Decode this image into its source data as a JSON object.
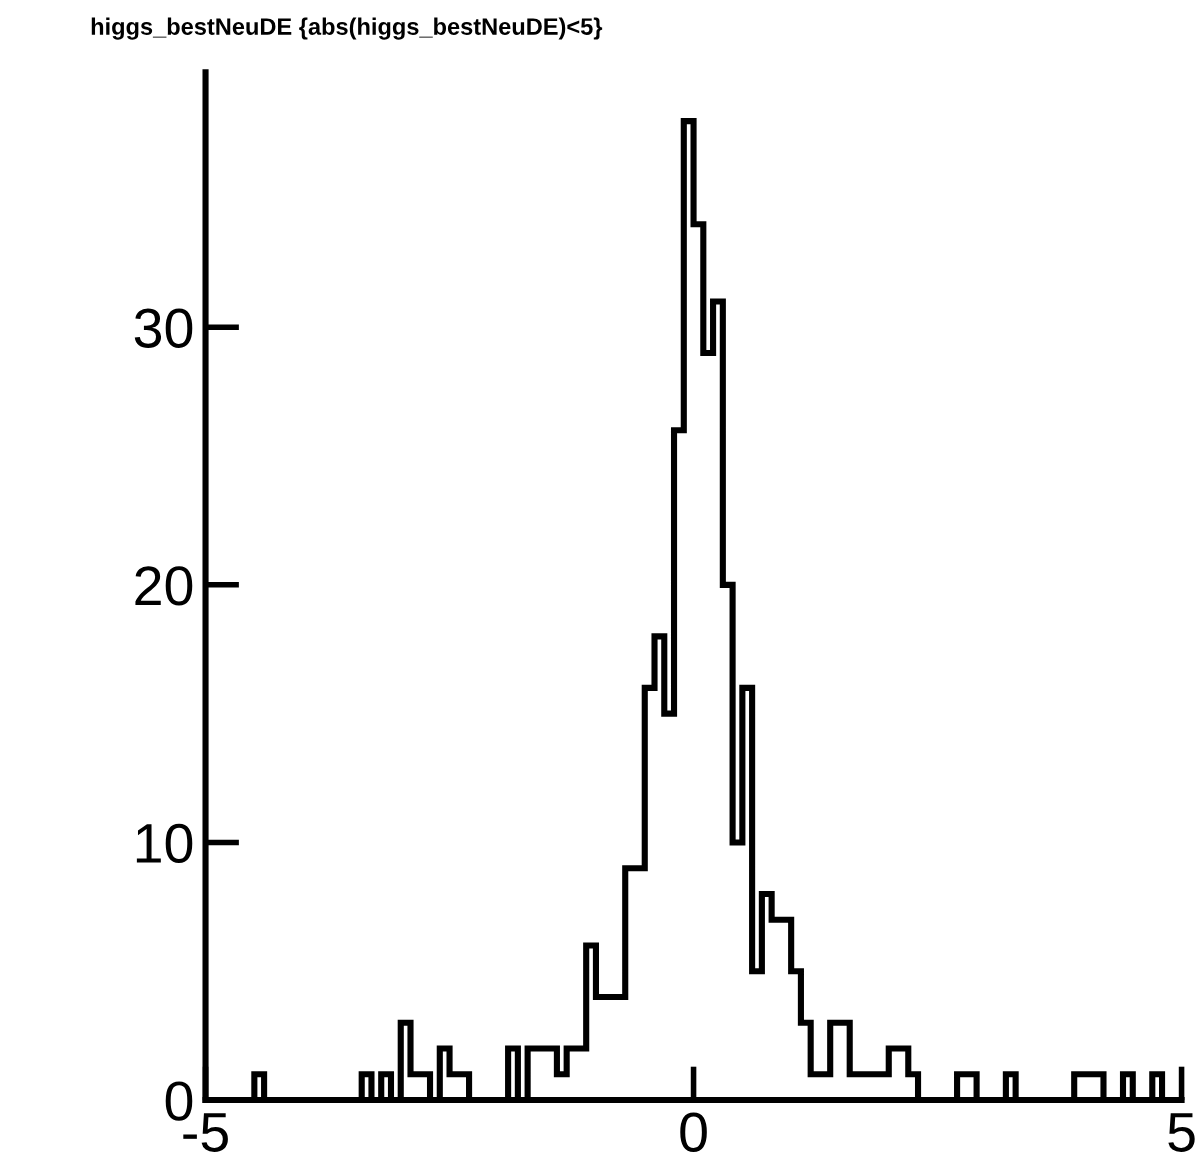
{
  "chart_data": {
    "type": "histogram",
    "title": "higgs_bestNeuDE {abs(higgs_bestNeuDE)<5}",
    "bins": [
      -5,
      -4.9,
      -4.8,
      -4.7,
      -4.6,
      -4.5,
      -4.4,
      -4.3,
      -4.2,
      -4.1,
      -4,
      -3.9,
      -3.8,
      -3.7,
      -3.6,
      -3.5,
      -3.4,
      -3.3,
      -3.2,
      -3.1,
      -3,
      -2.9,
      -2.8,
      -2.7,
      -2.6,
      -2.5,
      -2.4,
      -2.3,
      -2.2,
      -2.1,
      -2,
      -1.9,
      -1.8,
      -1.7,
      -1.6,
      -1.5,
      -1.4,
      -1.3,
      -1.2,
      -1.1,
      -1,
      -0.9,
      -0.8,
      -0.7,
      -0.6,
      -0.5,
      -0.4,
      -0.3,
      -0.2,
      -0.1,
      0,
      0.1,
      0.2,
      0.3,
      0.4,
      0.5,
      0.6,
      0.7,
      0.8,
      0.9,
      1,
      1.1,
      1.2,
      1.3,
      1.4,
      1.5,
      1.6,
      1.7,
      1.8,
      1.9,
      2,
      2.1,
      2.2,
      2.3,
      2.4,
      2.5,
      2.6,
      2.7,
      2.8,
      2.9,
      3,
      3.1,
      3.2,
      3.3,
      3.4,
      3.5,
      3.6,
      3.7,
      3.8,
      3.9,
      4,
      4.1,
      4.2,
      4.3,
      4.4,
      4.5,
      4.6,
      4.7,
      4.8,
      4.9,
      5
    ],
    "values": [
      0,
      0,
      0,
      0,
      0,
      1,
      0,
      0,
      0,
      0,
      0,
      0,
      0,
      0,
      0,
      0,
      1,
      0,
      1,
      0,
      3,
      1,
      1,
      0,
      2,
      1,
      1,
      0,
      0,
      0,
      0,
      2,
      0,
      2,
      2,
      2,
      1,
      2,
      2,
      6,
      4,
      4,
      4,
      9,
      9,
      16,
      18,
      15,
      26,
      38,
      34,
      29,
      31,
      20,
      10,
      16,
      5,
      8,
      7,
      7,
      5,
      3,
      1,
      1,
      3,
      3,
      1,
      1,
      1,
      1,
      2,
      2,
      1,
      0,
      0,
      0,
      0,
      1,
      1,
      0,
      0,
      0,
      1,
      0,
      0,
      0,
      0,
      0,
      0,
      1,
      1,
      1,
      0,
      0,
      1,
      0,
      0,
      1,
      0,
      0
    ],
    "color": "#000000",
    "xlim": [
      -5,
      5
    ],
    "xticks": [
      -5,
      0,
      5
    ],
    "ylim": [
      0,
      39.9
    ],
    "yticks": [
      0,
      10,
      20,
      30
    ],
    "grid": false,
    "legend": false
  }
}
